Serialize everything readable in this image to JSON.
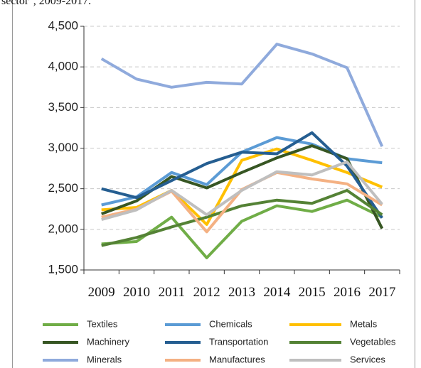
{
  "chart_data": {
    "type": "line",
    "title": "sector\", 2009-2017.",
    "categories": [
      "2009",
      "2010",
      "2011",
      "2012",
      "2013",
      "2014",
      "2015",
      "2016",
      "2017"
    ],
    "ylim": [
      1500,
      4500
    ],
    "yticks": [
      {
        "value": 1500,
        "label": "1,500"
      },
      {
        "value": 2000,
        "label": "2,000"
      },
      {
        "value": 2500,
        "label": "2,500"
      },
      {
        "value": 3000,
        "label": "3,000"
      },
      {
        "value": 3500,
        "label": "3,500"
      },
      {
        "value": 4000,
        "label": "4,000"
      },
      {
        "value": 4500,
        "label": "4,500"
      }
    ],
    "grid": true,
    "legend": "bottom",
    "series": [
      {
        "name": "Textiles",
        "color": "#70ad47",
        "values": [
          1820,
          1850,
          2150,
          1650,
          2100,
          2290,
          2220,
          2360,
          2150
        ]
      },
      {
        "name": "Chemicals",
        "color": "#5b9bd5",
        "values": [
          2300,
          2400,
          2700,
          2550,
          2950,
          3130,
          3050,
          2870,
          2820
        ]
      },
      {
        "name": "Metals",
        "color": "#ffc000",
        "values": [
          2240,
          2270,
          2480,
          2060,
          2850,
          2990,
          2850,
          2700,
          2520
        ]
      },
      {
        "name": "Machinery",
        "color": "#375623",
        "values": [
          2190,
          2350,
          2650,
          2510,
          2700,
          2880,
          3030,
          2870,
          2010
        ]
      },
      {
        "name": "Transportation",
        "color": "#255e91",
        "values": [
          2500,
          2390,
          2600,
          2810,
          2950,
          2930,
          3190,
          2780,
          2140
        ]
      },
      {
        "name": "Vegetables",
        "color": "#548235",
        "values": [
          1800,
          1900,
          2030,
          2150,
          2290,
          2360,
          2320,
          2480,
          2180
        ]
      },
      {
        "name": "Minerals",
        "color": "#8faadc",
        "values": [
          4100,
          3850,
          3750,
          3810,
          3790,
          4280,
          4160,
          3990,
          3020
        ]
      },
      {
        "name": "Manufactures",
        "color": "#f4b183",
        "values": [
          2150,
          2250,
          2470,
          1970,
          2490,
          2700,
          2620,
          2560,
          2300
        ]
      },
      {
        "name": "Services",
        "color": "#bfbfbf",
        "values": [
          2120,
          2240,
          2480,
          2180,
          2480,
          2710,
          2670,
          2830,
          2310
        ]
      }
    ]
  }
}
